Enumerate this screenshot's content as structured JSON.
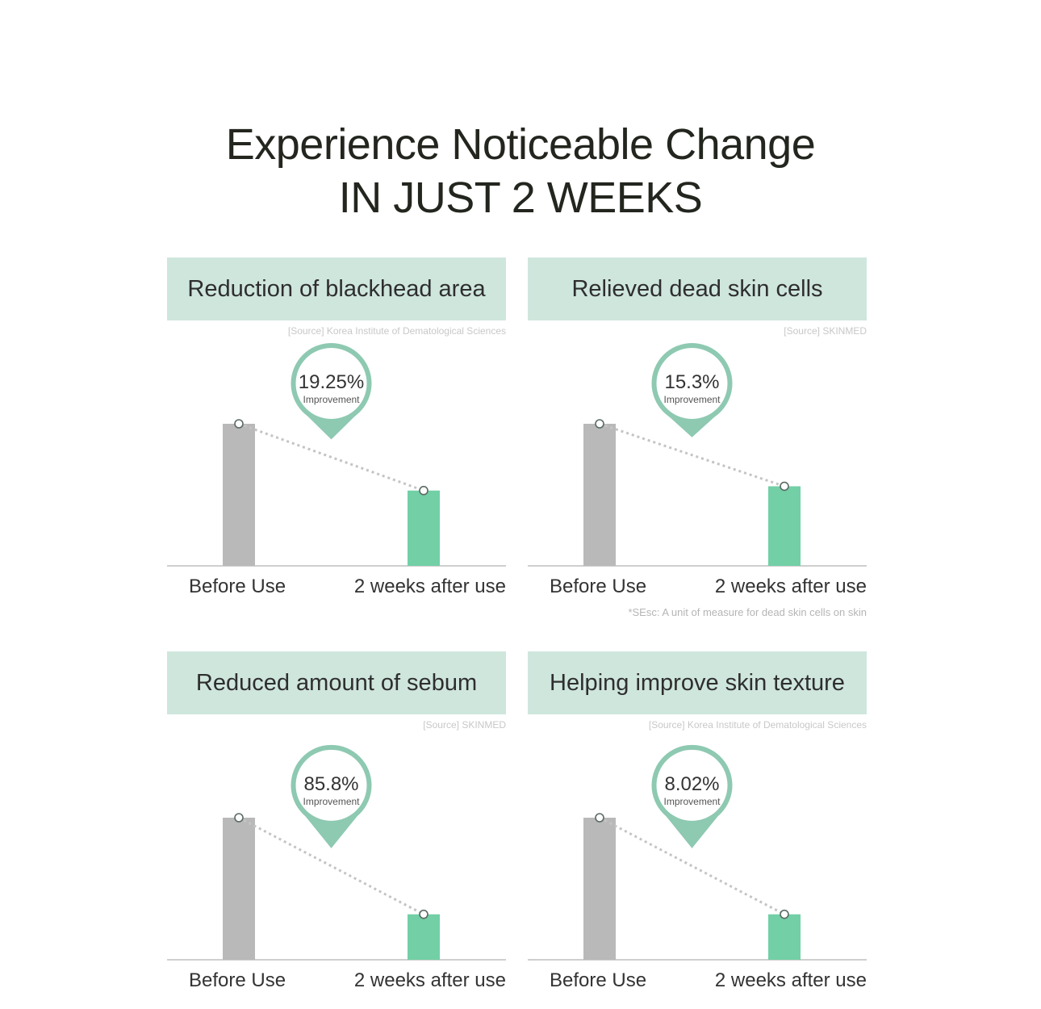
{
  "headline": {
    "line1": "Experience Noticeable Change",
    "line2": "IN JUST 2 WEEKS"
  },
  "colors": {
    "panel_header": "#cfe6dd",
    "before_bar": "#b9b9b9",
    "after_bar": "#72cfa6",
    "bubble": "#8ec9b2",
    "text": "#2e2e2e"
  },
  "chart_data": [
    {
      "type": "bar",
      "title": "Reduction of blackhead area",
      "source": "[Source] Korea Institute of Dematological Sciences",
      "categories": [
        "Before Use",
        "2 weeks after use"
      ],
      "values": [
        100,
        53
      ],
      "improvement_value": "19.25%",
      "improvement_label": "Improvement",
      "footnote": ""
    },
    {
      "type": "bar",
      "title": "Relieved dead skin cells",
      "source": "[Source] SKINMED",
      "categories": [
        "Before Use",
        "2 weeks after use"
      ],
      "values": [
        100,
        56
      ],
      "improvement_value": "15.3%",
      "improvement_label": "Improvement",
      "footnote": "*SEsc: A unit of measure for dead skin cells on skin"
    },
    {
      "type": "bar",
      "title": "Reduced amount of sebum",
      "source": "[Source] SKINMED",
      "categories": [
        "Before Use",
        "2 weeks after use"
      ],
      "values": [
        100,
        32
      ],
      "improvement_value": "85.8%",
      "improvement_label": "Improvement",
      "footnote": ""
    },
    {
      "type": "bar",
      "title": "Helping improve skin texture",
      "source": "[Source] Korea Institute of Dematological Sciences",
      "categories": [
        "Before Use",
        "2 weeks after use"
      ],
      "values": [
        100,
        32
      ],
      "improvement_value": "8.02%",
      "improvement_label": "Improvement",
      "footnote": ""
    }
  ]
}
